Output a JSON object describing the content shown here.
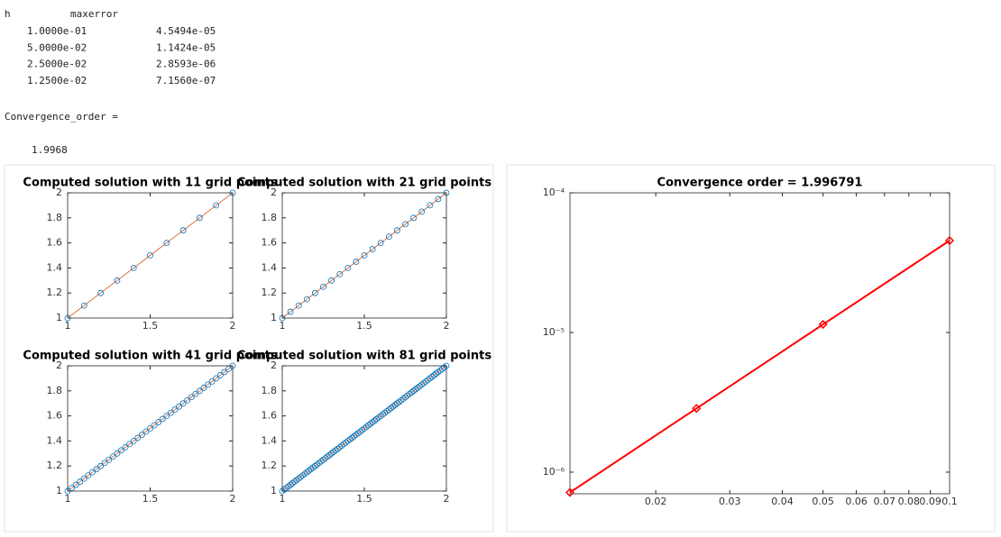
{
  "console": {
    "header": [
      "h",
      "maxerror"
    ],
    "rows": [
      [
        "1.0000e-01",
        "4.5494e-05"
      ],
      [
        "5.0000e-02",
        "1.1424e-05"
      ],
      [
        "2.5000e-02",
        "2.8593e-06"
      ],
      [
        "1.2500e-02",
        "7.1560e-07"
      ]
    ],
    "label": "Convergence_order =",
    "value": "1.9968"
  },
  "chart_data": [
    {
      "type": "line",
      "title": "Computed solution with 11 grid points",
      "marker": "circle",
      "marker_color": "#0072bd",
      "line_color": "#d95319",
      "x": [
        1,
        1.1,
        1.2,
        1.3,
        1.4,
        1.5,
        1.6,
        1.7,
        1.8,
        1.9,
        2
      ],
      "values": [
        1,
        1.1,
        1.2,
        1.3,
        1.4,
        1.5,
        1.6,
        1.7,
        1.8,
        1.9,
        2
      ],
      "xlim": [
        1,
        2
      ],
      "xticks": [
        1,
        1.5,
        2
      ],
      "ylim": [
        1,
        2
      ],
      "yticks": [
        1,
        1.2,
        1.4,
        1.6,
        1.8,
        2
      ]
    },
    {
      "type": "line",
      "title": "Computed solution with 21 grid points",
      "marker": "circle",
      "marker_color": "#0072bd",
      "line_color": "#d95319",
      "x": [
        1,
        1.05,
        1.1,
        1.15,
        1.2,
        1.25,
        1.3,
        1.35,
        1.4,
        1.45,
        1.5,
        1.55,
        1.6,
        1.65,
        1.7,
        1.75,
        1.8,
        1.85,
        1.9,
        1.95,
        2
      ],
      "values": [
        1,
        1.05,
        1.1,
        1.15,
        1.2,
        1.25,
        1.3,
        1.35,
        1.4,
        1.45,
        1.5,
        1.55,
        1.6,
        1.65,
        1.7,
        1.75,
        1.8,
        1.85,
        1.9,
        1.95,
        2
      ],
      "xlim": [
        1,
        2
      ],
      "xticks": [
        1,
        1.5,
        2
      ],
      "ylim": [
        1,
        2
      ],
      "yticks": [
        1,
        1.2,
        1.4,
        1.6,
        1.8,
        2
      ]
    },
    {
      "type": "line",
      "title": "Computed solution with 41 grid points",
      "marker": "circle",
      "marker_color": "#0072bd",
      "line_color": "#d95319",
      "x": [
        1,
        1.025,
        1.05,
        1.075,
        1.1,
        1.125,
        1.15,
        1.175,
        1.2,
        1.225,
        1.25,
        1.275,
        1.3,
        1.325,
        1.35,
        1.375,
        1.4,
        1.425,
        1.45,
        1.475,
        1.5,
        1.525,
        1.55,
        1.575,
        1.6,
        1.625,
        1.65,
        1.675,
        1.7,
        1.725,
        1.75,
        1.775,
        1.8,
        1.825,
        1.85,
        1.875,
        1.9,
        1.925,
        1.95,
        1.975,
        2
      ],
      "values": [
        1,
        1.025,
        1.05,
        1.075,
        1.1,
        1.125,
        1.15,
        1.175,
        1.2,
        1.225,
        1.25,
        1.275,
        1.3,
        1.325,
        1.35,
        1.375,
        1.4,
        1.425,
        1.45,
        1.475,
        1.5,
        1.525,
        1.55,
        1.575,
        1.6,
        1.625,
        1.65,
        1.675,
        1.7,
        1.725,
        1.75,
        1.775,
        1.8,
        1.825,
        1.85,
        1.875,
        1.9,
        1.925,
        1.95,
        1.975,
        2
      ],
      "xlim": [
        1,
        2
      ],
      "xticks": [
        1,
        1.5,
        2
      ],
      "ylim": [
        1,
        2
      ],
      "yticks": [
        1,
        1.2,
        1.4,
        1.6,
        1.8,
        2
      ]
    },
    {
      "type": "line",
      "title": "Computed solution with 81 grid points",
      "marker": "circle",
      "marker_color": "#0072bd",
      "line_color": "#d95319",
      "x": [
        1,
        1.0125,
        1.025,
        1.0375,
        1.05,
        1.0625,
        1.075,
        1.0875,
        1.1,
        1.1125,
        1.125,
        1.1375,
        1.15,
        1.1625,
        1.175,
        1.1875,
        1.2,
        1.2125,
        1.225,
        1.2375,
        1.25,
        1.2625,
        1.275,
        1.2875,
        1.3,
        1.3125,
        1.325,
        1.3375,
        1.35,
        1.3625,
        1.375,
        1.3875,
        1.4,
        1.4125,
        1.425,
        1.4375,
        1.45,
        1.4625,
        1.475,
        1.4875,
        1.5,
        1.5125,
        1.525,
        1.5375,
        1.55,
        1.5625,
        1.575,
        1.5875,
        1.6,
        1.6125,
        1.625,
        1.6375,
        1.65,
        1.6625,
        1.675,
        1.6875,
        1.7,
        1.7125,
        1.725,
        1.7375,
        1.75,
        1.7625,
        1.775,
        1.7875,
        1.8,
        1.8125,
        1.825,
        1.8375,
        1.85,
        1.8625,
        1.875,
        1.8875,
        1.9,
        1.9125,
        1.925,
        1.9375,
        1.95,
        1.9625,
        1.975,
        1.9875,
        2
      ],
      "values": [
        1,
        1.0125,
        1.025,
        1.0375,
        1.05,
        1.0625,
        1.075,
        1.0875,
        1.1,
        1.1125,
        1.125,
        1.1375,
        1.15,
        1.1625,
        1.175,
        1.1875,
        1.2,
        1.2125,
        1.225,
        1.2375,
        1.25,
        1.2625,
        1.275,
        1.2875,
        1.3,
        1.3125,
        1.325,
        1.3375,
        1.35,
        1.3625,
        1.375,
        1.3875,
        1.4,
        1.4125,
        1.425,
        1.4375,
        1.45,
        1.4625,
        1.475,
        1.4875,
        1.5,
        1.5125,
        1.525,
        1.5375,
        1.55,
        1.5625,
        1.575,
        1.5875,
        1.6,
        1.6125,
        1.625,
        1.6375,
        1.65,
        1.6625,
        1.675,
        1.6875,
        1.7,
        1.7125,
        1.725,
        1.7375,
        1.75,
        1.7625,
        1.775,
        1.7875,
        1.8,
        1.8125,
        1.825,
        1.8375,
        1.85,
        1.8625,
        1.875,
        1.8875,
        1.9,
        1.9125,
        1.925,
        1.9375,
        1.95,
        1.9625,
        1.975,
        1.9875,
        2
      ],
      "xlim": [
        1,
        2
      ],
      "xticks": [
        1,
        1.5,
        2
      ],
      "ylim": [
        1,
        2
      ],
      "yticks": [
        1,
        1.2,
        1.4,
        1.6,
        1.8,
        2
      ]
    },
    {
      "type": "line",
      "title": "Convergence order = 1.996791",
      "marker": "diamond",
      "marker_color": "#ff0000",
      "line_color": "#ff0000",
      "log_x": true,
      "log_y": true,
      "x": [
        0.1,
        0.05,
        0.025,
        0.0125
      ],
      "values": [
        4.5494e-05,
        1.1424e-05,
        2.8593e-06,
        7.156e-07
      ],
      "xlim": [
        0.0125,
        0.1
      ],
      "xticks": [
        0.02,
        0.03,
        0.04,
        0.05,
        0.06,
        0.07,
        0.08,
        0.09,
        0.1
      ],
      "ylim": [
        7e-07,
        0.0001
      ],
      "yticks": [
        {
          "value": 1e-06,
          "label": "10⁻⁶"
        },
        {
          "value": 1e-05,
          "label": "10⁻⁵"
        },
        {
          "value": 0.0001,
          "label": "10⁻⁴"
        }
      ]
    }
  ]
}
